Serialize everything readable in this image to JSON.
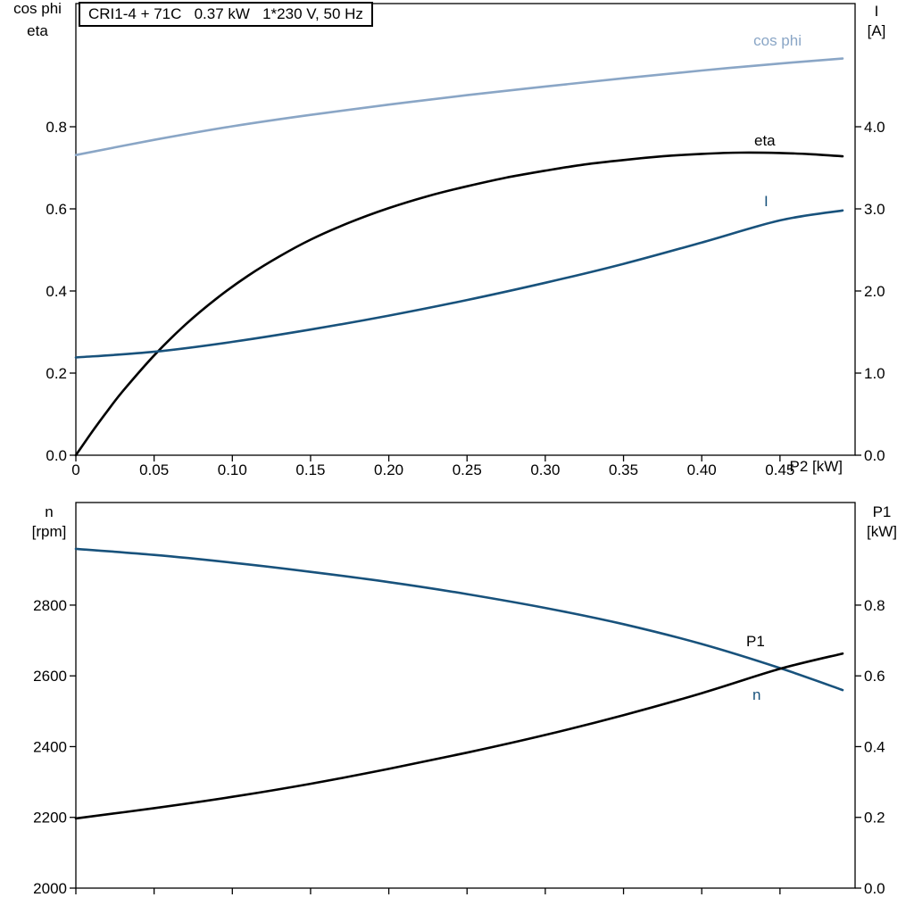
{
  "colors": {
    "background": "#ffffff",
    "frame": "#000000",
    "text": "#000000",
    "black": "#000000",
    "dark_blue": "#18527c",
    "light_blue": "#8aa6c6"
  },
  "header": {
    "title": "CRI1-4 + 71C   0.37 kW   1*230 V, 50 Hz"
  },
  "top_chart": {
    "corner_left_line1": "cos phi",
    "corner_left_line2": "eta",
    "corner_right_line1": "I",
    "corner_right_line2": "[A]",
    "x_axis_label": "P2 [kW]",
    "curve_labels": {
      "cos_phi": "cos phi",
      "eta": "eta",
      "current": "I"
    }
  },
  "bottom_chart": {
    "corner_left_line1": "n",
    "corner_left_line2": "[rpm]",
    "corner_right_line1": "P1",
    "corner_right_line2": "[kW]",
    "curve_labels": {
      "p1": "P1",
      "n": "n"
    }
  },
  "chart_data": [
    {
      "id": "top",
      "type": "line",
      "title": "CRI1-4 + 71C   0.37 kW   1*230 V, 50 Hz",
      "xlabel": "P2 [kW]",
      "grid": false,
      "x_range": [
        0,
        0.498
      ],
      "x_ticks": [
        {
          "v": 0,
          "label": "0"
        },
        {
          "v": 0.05,
          "label": "0.05"
        },
        {
          "v": 0.1,
          "label": "0.10"
        },
        {
          "v": 0.15,
          "label": "0.15"
        },
        {
          "v": 0.2,
          "label": "0.20"
        },
        {
          "v": 0.25,
          "label": "0.25"
        },
        {
          "v": 0.3,
          "label": "0.30"
        },
        {
          "v": 0.35,
          "label": "0.35"
        },
        {
          "v": 0.4,
          "label": "0.40"
        },
        {
          "v": 0.45,
          "label": "0.45"
        }
      ],
      "left_axis": {
        "label": "cos phi / eta",
        "range": [
          0,
          1.1
        ],
        "ticks": [
          {
            "v": 0.0,
            "label": "0.0"
          },
          {
            "v": 0.2,
            "label": "0.2"
          },
          {
            "v": 0.4,
            "label": "0.4"
          },
          {
            "v": 0.6,
            "label": "0.6"
          },
          {
            "v": 0.8,
            "label": "0.8"
          }
        ]
      },
      "right_axis": {
        "label": "I [A]",
        "range": [
          0,
          5.5
        ],
        "ticks": [
          {
            "v": 0.0,
            "label": "0.0"
          },
          {
            "v": 1.0,
            "label": "1.0"
          },
          {
            "v": 2.0,
            "label": "2.0"
          },
          {
            "v": 3.0,
            "label": "3.0"
          },
          {
            "v": 4.0,
            "label": "4.0"
          }
        ]
      },
      "series": [
        {
          "name": "cos phi",
          "axis": "left",
          "color": "light_blue",
          "x": [
            0,
            0.05,
            0.1,
            0.15,
            0.2,
            0.25,
            0.3,
            0.35,
            0.4,
            0.45,
            0.49
          ],
          "y": [
            0.731,
            0.768,
            0.801,
            0.829,
            0.854,
            0.877,
            0.898,
            0.918,
            0.937,
            0.954,
            0.966
          ]
        },
        {
          "name": "eta",
          "axis": "left",
          "color": "black",
          "x": [
            0,
            0.01,
            0.02,
            0.03,
            0.05,
            0.07,
            0.09,
            0.11,
            0.13,
            0.15,
            0.175,
            0.2,
            0.225,
            0.25,
            0.275,
            0.3,
            0.325,
            0.35,
            0.375,
            0.4,
            0.425,
            0.45,
            0.47,
            0.49
          ],
          "y": [
            0,
            0.055,
            0.107,
            0.156,
            0.243,
            0.318,
            0.382,
            0.437,
            0.484,
            0.525,
            0.567,
            0.602,
            0.631,
            0.655,
            0.676,
            0.693,
            0.708,
            0.719,
            0.728,
            0.734,
            0.737,
            0.736,
            0.733,
            0.728
          ]
        },
        {
          "name": "I",
          "axis": "right",
          "color": "dark_blue",
          "x": [
            0,
            0.05,
            0.1,
            0.15,
            0.2,
            0.25,
            0.3,
            0.35,
            0.4,
            0.45,
            0.49
          ],
          "y": [
            1.19,
            1.26,
            1.38,
            1.53,
            1.7,
            1.89,
            2.1,
            2.33,
            2.59,
            2.86,
            2.98
          ]
        }
      ]
    },
    {
      "id": "bottom",
      "type": "line",
      "title": "",
      "xlabel": "",
      "grid": false,
      "x_range": [
        0,
        0.498
      ],
      "x_ticks": [
        {
          "v": 0
        },
        {
          "v": 0.05
        },
        {
          "v": 0.1
        },
        {
          "v": 0.15
        },
        {
          "v": 0.2
        },
        {
          "v": 0.25
        },
        {
          "v": 0.3
        },
        {
          "v": 0.35
        },
        {
          "v": 0.4
        },
        {
          "v": 0.45
        }
      ],
      "left_axis": {
        "label": "n [rpm]",
        "range": [
          2000,
          3090
        ],
        "ticks": [
          {
            "v": 2000,
            "label": "2000"
          },
          {
            "v": 2200,
            "label": "2200"
          },
          {
            "v": 2400,
            "label": "2400"
          },
          {
            "v": 2600,
            "label": "2600"
          },
          {
            "v": 2800,
            "label": "2800"
          }
        ]
      },
      "right_axis": {
        "label": "P1 [kW]",
        "range": [
          0,
          1.09
        ],
        "ticks": [
          {
            "v": 0.0,
            "label": "0.0"
          },
          {
            "v": 0.2,
            "label": "0.2"
          },
          {
            "v": 0.4,
            "label": "0.4"
          },
          {
            "v": 0.6,
            "label": "0.6"
          },
          {
            "v": 0.8,
            "label": "0.8"
          }
        ]
      },
      "series": [
        {
          "name": "n",
          "axis": "left",
          "color": "dark_blue",
          "x": [
            0,
            0.05,
            0.1,
            0.15,
            0.2,
            0.25,
            0.3,
            0.35,
            0.4,
            0.45,
            0.49
          ],
          "y": [
            2959,
            2942,
            2920,
            2894,
            2865,
            2831,
            2792,
            2746,
            2690,
            2622,
            2560
          ]
        },
        {
          "name": "P1",
          "axis": "right",
          "color": "black",
          "x": [
            0,
            0.05,
            0.1,
            0.15,
            0.2,
            0.25,
            0.3,
            0.35,
            0.4,
            0.45,
            0.49
          ],
          "y": [
            0.197,
            0.226,
            0.258,
            0.295,
            0.337,
            0.383,
            0.433,
            0.489,
            0.551,
            0.62,
            0.663
          ]
        }
      ]
    }
  ]
}
